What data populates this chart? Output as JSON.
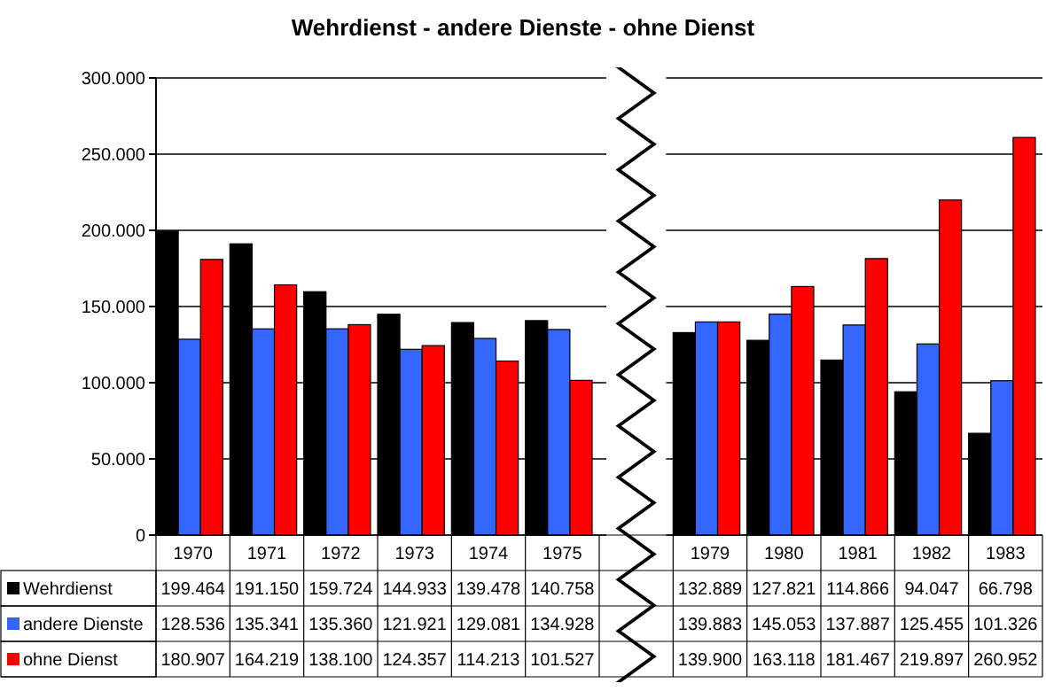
{
  "chart_data": {
    "type": "bar",
    "title": "Wehrdienst - andere Dienste - ohne Dienst",
    "categories": [
      "1970",
      "1971",
      "1972",
      "1973",
      "1974",
      "1975",
      null,
      "1979",
      "1980",
      "1981",
      "1982",
      "1983"
    ],
    "series": [
      {
        "name": "Wehrdienst",
        "color": "#000000",
        "values": [
          199464,
          191150,
          159724,
          144933,
          139478,
          140758,
          null,
          132889,
          127821,
          114866,
          94047,
          66798
        ],
        "value_labels": [
          "199.464",
          "191.150",
          "159.724",
          "144.933",
          "139.478",
          "140.758",
          null,
          "132.889",
          "127.821",
          "114.866",
          "94.047",
          "66.798"
        ]
      },
      {
        "name": "andere Dienste",
        "color": "#3366ff",
        "values": [
          128536,
          135341,
          135360,
          121921,
          129081,
          134928,
          null,
          139883,
          145053,
          137887,
          125455,
          101326
        ],
        "value_labels": [
          "128.536",
          "135.341",
          "135.360",
          "121.921",
          "129.081",
          "134.928",
          null,
          "139.883",
          "145.053",
          "137.887",
          "125.455",
          "101.326"
        ]
      },
      {
        "name": "ohne Dienst",
        "color": "#ff0000",
        "values": [
          180907,
          164219,
          138100,
          124357,
          114213,
          101527,
          null,
          139900,
          163118,
          181467,
          219897,
          260952
        ],
        "value_labels": [
          "180.907",
          "164.219",
          "138.100",
          "124.357",
          "114.213",
          "101.527",
          null,
          "139.900",
          "163.118",
          "181.467",
          "219.897",
          "260.952"
        ]
      }
    ],
    "ylim": [
      0,
      300000
    ],
    "yticks": [
      {
        "value": 0,
        "label": "0"
      },
      {
        "value": 50000,
        "label": "50.000"
      },
      {
        "value": 100000,
        "label": "100.000"
      },
      {
        "value": 150000,
        "label": "150.000"
      },
      {
        "value": 200000,
        "label": "200.000"
      },
      {
        "value": 250000,
        "label": "250.000"
      },
      {
        "value": 300000,
        "label": "300.000"
      }
    ],
    "grid": "y",
    "legend": "bottom left"
  }
}
